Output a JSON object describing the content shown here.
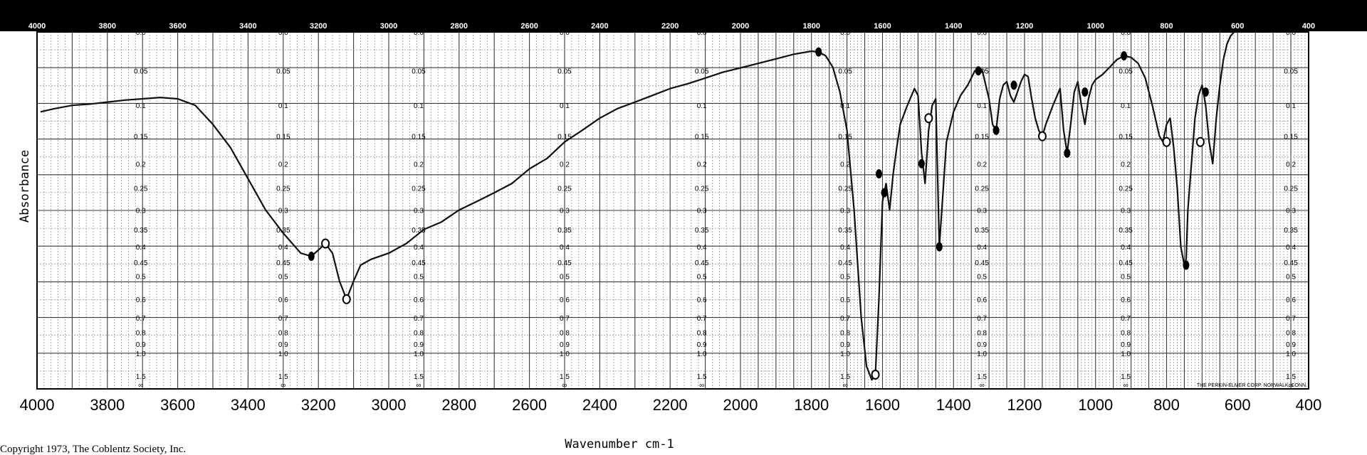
{
  "chart_data": {
    "type": "line",
    "xlabel": "Wavenumber cm-1",
    "ylabel": "Absorbance",
    "xlim": [
      4000,
      400
    ],
    "ylim": [
      0,
      1.5
    ],
    "x_ticks_bottom": [
      "4000",
      "3800",
      "3600",
      "3400",
      "3200",
      "3000",
      "2800",
      "2600",
      "2400",
      "2200",
      "2000",
      "1800",
      "1600",
      "1400",
      "1200",
      "1000",
      "800",
      "600",
      "400"
    ],
    "x_ticks_top": [
      "4000",
      "3800",
      "3600",
      "3400",
      "3200",
      "3000",
      "2800",
      "2600",
      "2400",
      "2200",
      "2000",
      "1800",
      "1600",
      "1400",
      "1200",
      "1000",
      "800",
      "600",
      "400"
    ],
    "absorbance_labels": [
      "0.0",
      "0.05",
      "0.1",
      "0.15",
      "0.2",
      "0.25",
      "0.3",
      "0.35",
      "0.4",
      "0.45",
      "0.5",
      "0.6",
      "0.7",
      "0.8",
      "0.9",
      "1.0",
      "1.5",
      "∞"
    ],
    "series": [
      {
        "x": [
          3990,
          3950,
          3900,
          3850,
          3800,
          3750,
          3700,
          3650,
          3600,
          3550,
          3500,
          3450,
          3400,
          3350,
          3300,
          3250,
          3220,
          3200,
          3180,
          3160,
          3140,
          3120,
          3100,
          3080,
          3050,
          3000,
          2950,
          2900,
          2850,
          2800,
          2750,
          2700,
          2650,
          2600,
          2550,
          2500,
          2450,
          2400,
          2350,
          2300,
          2250,
          2200,
          2150,
          2100,
          2050,
          2000,
          1950,
          1900,
          1850,
          1800,
          1780,
          1760,
          1740,
          1720,
          1700,
          1680,
          1660,
          1645,
          1630,
          1620,
          1610,
          1600,
          1590,
          1580,
          1570,
          1560,
          1550,
          1530,
          1510,
          1500,
          1490,
          1480,
          1470,
          1460,
          1450,
          1440,
          1420,
          1400,
          1380,
          1360,
          1340,
          1320,
          1300,
          1290,
          1280,
          1270,
          1260,
          1250,
          1240,
          1230,
          1220,
          1210,
          1200,
          1190,
          1180,
          1170,
          1160,
          1150,
          1140,
          1120,
          1100,
          1090,
          1080,
          1070,
          1060,
          1050,
          1040,
          1030,
          1020,
          1010,
          1000,
          980,
          960,
          940,
          920,
          900,
          880,
          860,
          840,
          820,
          810,
          800,
          790,
          780,
          770,
          760,
          750,
          745,
          740,
          730,
          720,
          710,
          700,
          690,
          680,
          670,
          660,
          650,
          640,
          630,
          620,
          610,
          600
        ],
        "y": [
          0.11,
          0.105,
          0.1,
          0.098,
          0.095,
          0.092,
          0.09,
          0.088,
          0.09,
          0.1,
          0.13,
          0.17,
          0.23,
          0.3,
          0.36,
          0.42,
          0.43,
          0.41,
          0.39,
          0.42,
          0.52,
          0.6,
          0.52,
          0.46,
          0.44,
          0.42,
          0.39,
          0.35,
          0.33,
          0.3,
          0.28,
          0.26,
          0.24,
          0.21,
          0.19,
          0.16,
          0.14,
          0.12,
          0.105,
          0.095,
          0.085,
          0.075,
          0.068,
          0.06,
          0.052,
          0.046,
          0.04,
          0.034,
          0.028,
          0.024,
          0.025,
          0.03,
          0.045,
          0.08,
          0.14,
          0.3,
          0.7,
          1.2,
          1.6,
          1.4,
          0.6,
          0.28,
          0.24,
          0.3,
          0.22,
          0.17,
          0.13,
          0.1,
          0.075,
          0.085,
          0.18,
          0.24,
          0.14,
          0.1,
          0.09,
          0.4,
          0.16,
          0.11,
          0.085,
          0.07,
          0.05,
          0.048,
          0.09,
          0.13,
          0.14,
          0.09,
          0.07,
          0.065,
          0.085,
          0.095,
          0.08,
          0.065,
          0.055,
          0.058,
          0.09,
          0.12,
          0.14,
          0.15,
          0.13,
          0.1,
          0.075,
          0.14,
          0.18,
          0.13,
          0.08,
          0.065,
          0.1,
          0.13,
          0.09,
          0.07,
          0.062,
          0.055,
          0.045,
          0.035,
          0.03,
          0.032,
          0.04,
          0.06,
          0.1,
          0.15,
          0.16,
          0.13,
          0.12,
          0.17,
          0.25,
          0.4,
          0.46,
          0.44,
          0.3,
          0.2,
          0.12,
          0.085,
          0.07,
          0.1,
          0.16,
          0.2,
          0.12,
          0.07,
          0.035,
          0.015,
          0.005,
          0,
          0
        ]
      }
    ],
    "annotations": [
      "Copyright 1973, The Coblentz Society, Inc.",
      "THE PERKIN-ELMER CORP. NORWALK, CONN."
    ]
  }
}
